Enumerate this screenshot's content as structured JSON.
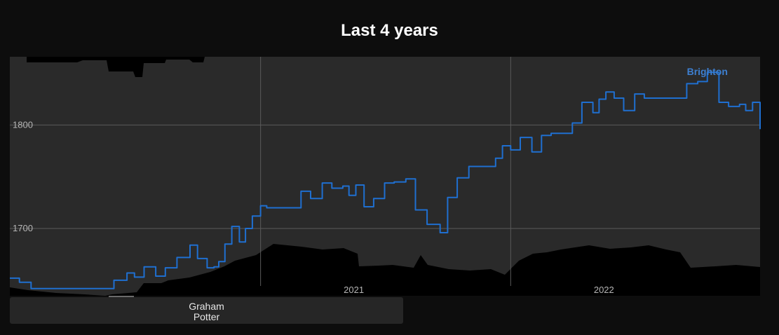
{
  "chart_data": {
    "type": "line",
    "title": "Last 4 years",
    "xlabel": "",
    "ylabel": "",
    "x_tick_labels": [
      "2021",
      "2022"
    ],
    "y_ticks": [
      1700,
      1800
    ],
    "ylim": [
      1635,
      1866
    ],
    "grid": true,
    "series": [
      {
        "name": "Brighton",
        "color": "#1f6fd0",
        "x": [
          "2020-01-01",
          "2020-01-15",
          "2020-02-01",
          "2020-02-15",
          "2020-03-01",
          "2020-06-01",
          "2020-06-20",
          "2020-07-01",
          "2020-07-15",
          "2020-08-01",
          "2020-08-15",
          "2020-09-01",
          "2020-09-20",
          "2020-10-01",
          "2020-10-15",
          "2020-10-25",
          "2020-11-01",
          "2020-11-10",
          "2020-11-20",
          "2020-12-01",
          "2020-12-10",
          "2020-12-20",
          "2021-01-01",
          "2021-01-10",
          "2021-01-20",
          "2021-02-01",
          "2021-02-15",
          "2021-03-01",
          "2021-03-15",
          "2021-04-01",
          "2021-04-15",
          "2021-05-01",
          "2021-05-10",
          "2021-05-20",
          "2021-06-01",
          "2021-06-15",
          "2021-07-01",
          "2021-07-15",
          "2021-08-01",
          "2021-08-15",
          "2021-09-01",
          "2021-09-20",
          "2021-10-01",
          "2021-10-15",
          "2021-11-01",
          "2021-11-15",
          "2021-12-01",
          "2021-12-10",
          "2021-12-20",
          "2022-01-01",
          "2022-01-15",
          "2022-02-01",
          "2022-02-15",
          "2022-03-01",
          "2022-03-15",
          "2022-04-01",
          "2022-04-15",
          "2022-05-01",
          "2022-05-10",
          "2022-05-20",
          "2022-06-01",
          "2022-06-15",
          "2022-07-01",
          "2022-07-15",
          "2022-08-01",
          "2022-08-15",
          "2022-09-01",
          "2022-09-15",
          "2022-10-01",
          "2022-10-15",
          "2022-11-01",
          "2022-11-15",
          "2022-12-01",
          "2022-12-10",
          "2022-12-20",
          "2022-12-31"
        ],
        "values": [
          1652,
          1648,
          1642,
          1642,
          1642,
          1650,
          1657,
          1653,
          1663,
          1654,
          1662,
          1672,
          1684,
          1671,
          1662,
          1663,
          1668,
          1685,
          1702,
          1687,
          1700,
          1712,
          1722,
          1720,
          1720,
          1720,
          1720,
          1736,
          1729,
          1744,
          1739,
          1741,
          1732,
          1742,
          1721,
          1729,
          1744,
          1745,
          1748,
          1718,
          1704,
          1696,
          1730,
          1749,
          1760,
          1760,
          1760,
          1768,
          1780,
          1776,
          1788,
          1774,
          1790,
          1792,
          1792,
          1802,
          1822,
          1812,
          1825,
          1832,
          1826,
          1814,
          1830,
          1826,
          1826,
          1826,
          1826,
          1840,
          1842,
          1851,
          1822,
          1818,
          1820,
          1814,
          1822,
          1796
        ]
      }
    ]
  },
  "annotation": {
    "manager": "Graham\nPotter"
  }
}
